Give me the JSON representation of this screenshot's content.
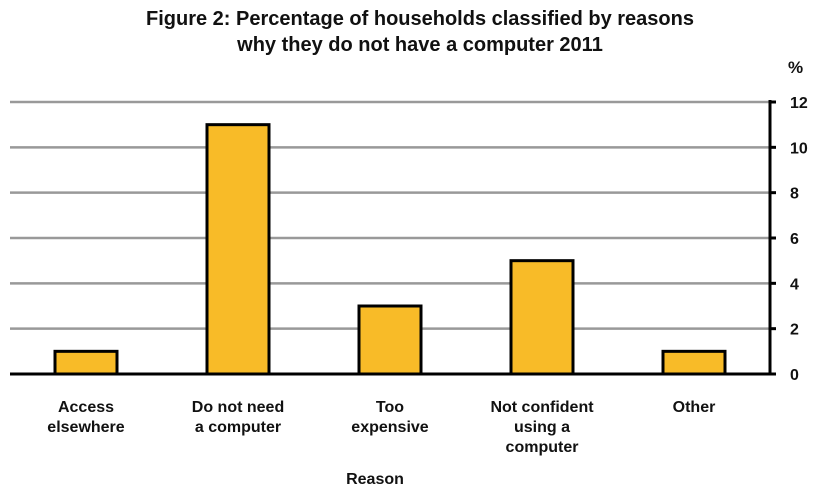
{
  "chart_data": {
    "type": "bar",
    "title_lines": [
      "Figure 2: Percentage  of households classified  by reasons",
      "why they do not have a computer  2011"
    ],
    "unit_label": "%",
    "xlabel": "Reason",
    "ylabel": "",
    "ylim": [
      0,
      12
    ],
    "yticks": [
      0,
      2,
      4,
      6,
      8,
      10,
      12
    ],
    "categories": [
      [
        "Access",
        "elsewhere"
      ],
      [
        "Do not need",
        "a computer"
      ],
      [
        "Too",
        "expensive"
      ],
      [
        "Not confident",
        "using a",
        "computer"
      ],
      [
        "Other"
      ]
    ],
    "values": [
      1,
      11,
      3,
      5,
      1
    ],
    "grid": true,
    "colors": {
      "bar": "#F8BB28",
      "bar_edge": "#000000",
      "grid": "#999999",
      "axis": "#000000"
    }
  }
}
